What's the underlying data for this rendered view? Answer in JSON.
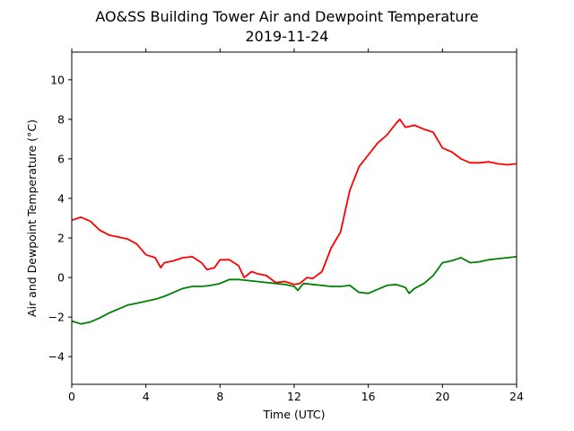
{
  "chart_data": {
    "type": "line",
    "title": "AO&SS Building Tower Air and Dewpoint Temperature",
    "subtitle": "2019-11-24",
    "xlabel": "Time (UTC)",
    "ylabel": "Air and Dewpoint Temperature (°C)",
    "xlim": [
      0,
      24
    ],
    "ylim": [
      -5.4,
      11.4
    ],
    "xticks": [
      0,
      4,
      8,
      12,
      16,
      20,
      24
    ],
    "yticks": [
      -4,
      -2,
      0,
      2,
      4,
      6,
      8,
      10
    ],
    "grid": false,
    "series": [
      {
        "color": "#ff0000",
        "x": [
          0,
          0.5,
          1.0,
          1.5,
          2.0,
          2.5,
          3.0,
          3.5,
          4.0,
          4.5,
          4.8,
          5.0,
          5.5,
          6.0,
          6.5,
          7.0,
          7.3,
          7.7,
          8.0,
          8.5,
          9.0,
          9.3,
          9.7,
          10.0,
          10.5,
          11.0,
          11.5,
          12.0,
          12.3,
          12.7,
          13.0,
          13.5,
          14.0,
          14.5,
          15.0,
          15.5,
          16.0,
          16.5,
          17.0,
          17.5,
          17.7,
          18.0,
          18.5,
          19.0,
          19.5,
          20.0,
          20.5,
          21.0,
          21.5,
          22.0,
          22.5,
          23.0,
          23.5,
          24.0
        ],
        "y": [
          2.9,
          3.05,
          2.85,
          2.4,
          2.15,
          2.05,
          1.95,
          1.7,
          1.15,
          1.0,
          0.5,
          0.75,
          0.85,
          1.0,
          1.05,
          0.75,
          0.4,
          0.5,
          0.9,
          0.9,
          0.6,
          0.0,
          0.3,
          0.2,
          0.1,
          -0.25,
          -0.2,
          -0.35,
          -0.3,
          0.0,
          -0.05,
          0.3,
          1.5,
          2.3,
          4.4,
          5.6,
          6.2,
          6.8,
          7.2,
          7.8,
          8.0,
          7.6,
          7.7,
          7.5,
          7.35,
          6.55,
          6.35,
          6.0,
          5.8,
          5.8,
          5.85,
          5.75,
          5.7,
          5.75
        ]
      },
      {
        "color": "#008000",
        "x": [
          0,
          0.5,
          1.0,
          1.5,
          2.0,
          2.5,
          3.0,
          3.5,
          4.0,
          4.5,
          5.0,
          5.5,
          6.0,
          6.5,
          7.0,
          7.5,
          8.0,
          8.5,
          9.0,
          9.5,
          10.0,
          10.5,
          11.0,
          11.5,
          12.0,
          12.2,
          12.5,
          13.0,
          13.5,
          14.0,
          14.5,
          15.0,
          15.5,
          16.0,
          16.5,
          17.0,
          17.5,
          18.0,
          18.2,
          18.5,
          19.0,
          19.5,
          20.0,
          20.5,
          21.0,
          21.5,
          22.0,
          22.5,
          23.0,
          23.5,
          24.0
        ],
        "y": [
          -2.2,
          -2.35,
          -2.25,
          -2.05,
          -1.8,
          -1.6,
          -1.4,
          -1.3,
          -1.2,
          -1.1,
          -0.95,
          -0.75,
          -0.55,
          -0.45,
          -0.45,
          -0.4,
          -0.3,
          -0.1,
          -0.1,
          -0.15,
          -0.2,
          -0.25,
          -0.3,
          -0.35,
          -0.45,
          -0.65,
          -0.3,
          -0.35,
          -0.4,
          -0.45,
          -0.45,
          -0.4,
          -0.75,
          -0.8,
          -0.6,
          -0.4,
          -0.35,
          -0.5,
          -0.8,
          -0.55,
          -0.3,
          0.1,
          0.75,
          0.85,
          1.0,
          0.75,
          0.8,
          0.9,
          0.95,
          1.0,
          1.05
        ]
      }
    ]
  }
}
